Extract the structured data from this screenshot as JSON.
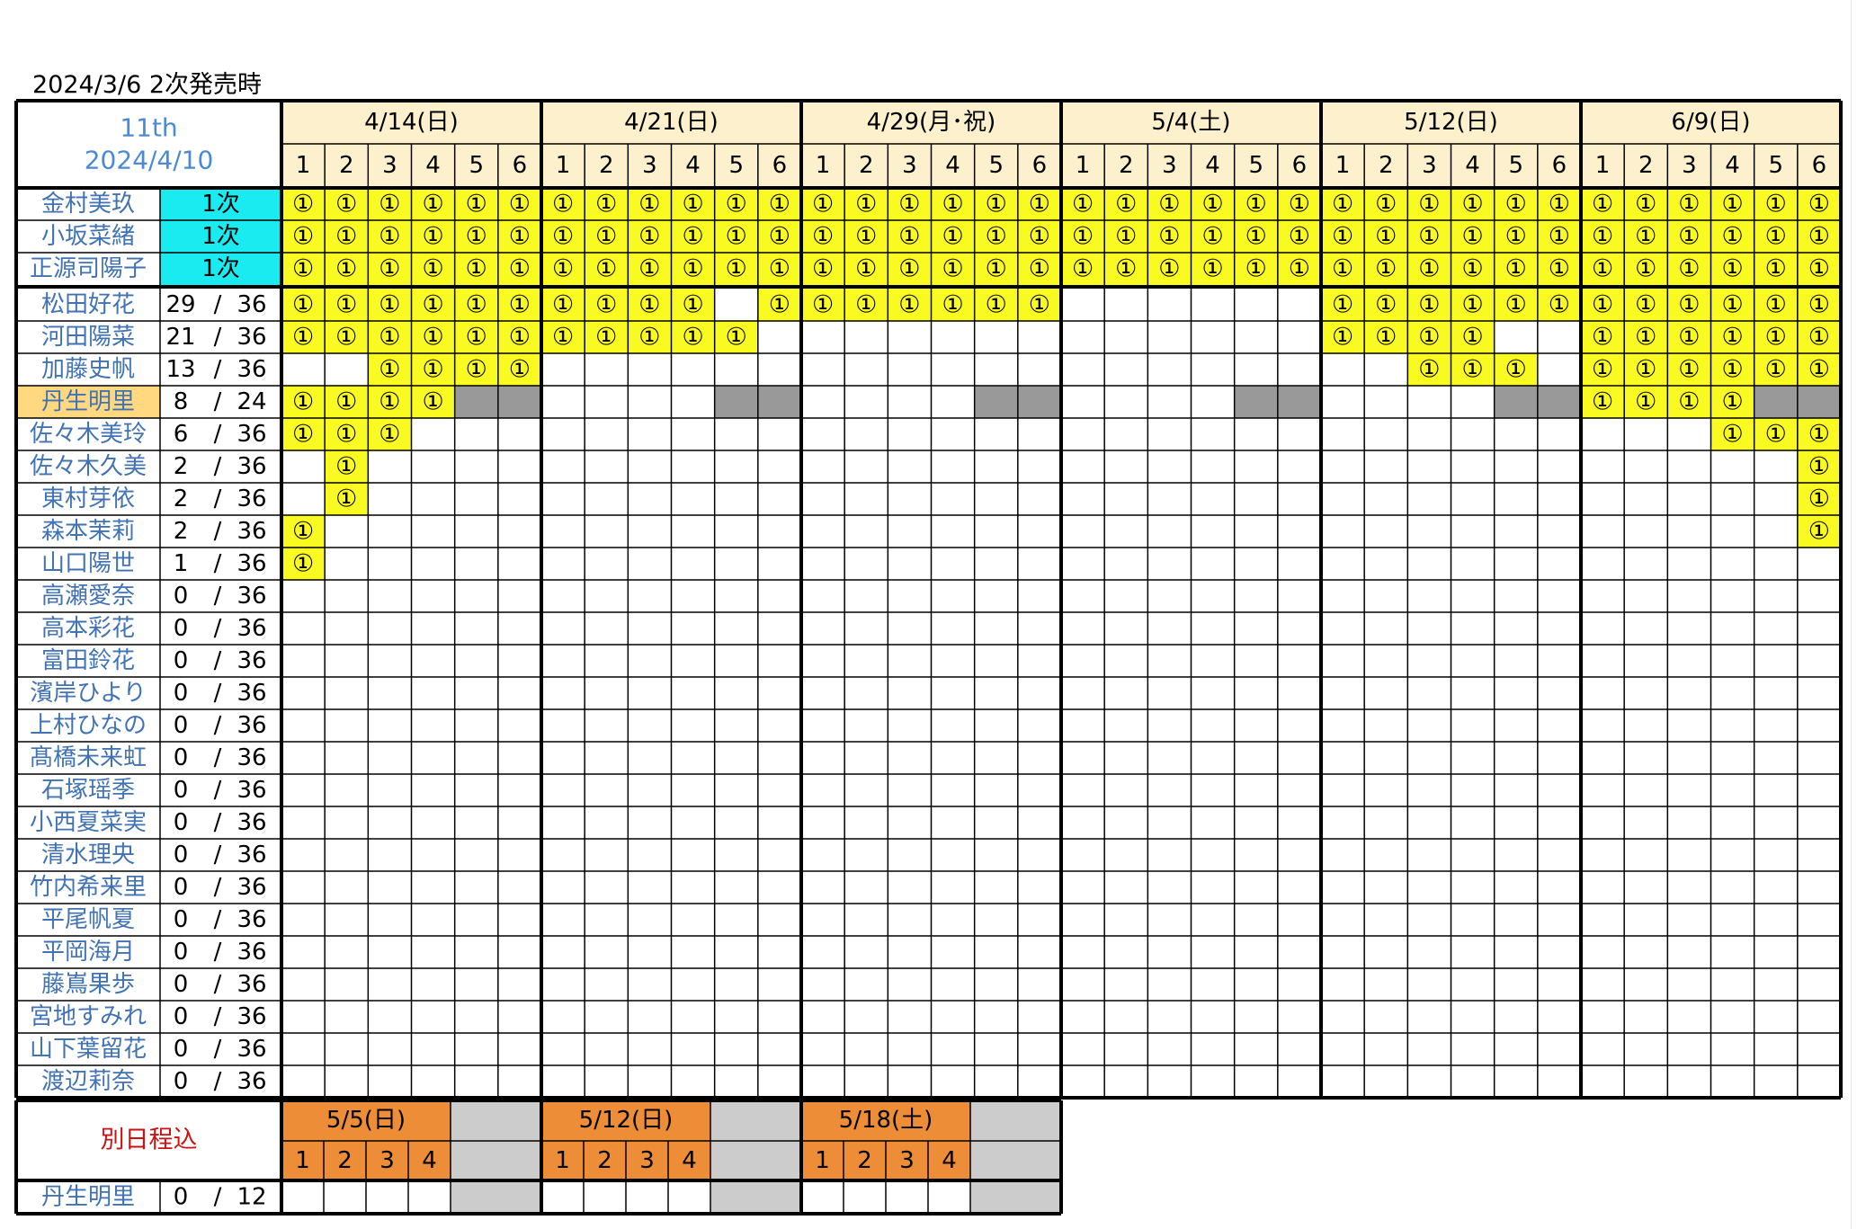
{
  "caption": "2024/3/6 2次発売時",
  "header": {
    "title_line1": "11th",
    "title_line2": "2024/4/10"
  },
  "mark": "①",
  "separator": "/",
  "dates": [
    "4/14(日)",
    "4/21(日)",
    "4/29(月･祝)",
    "5/4(土)",
    "5/12(日)",
    "6/9(日)"
  ],
  "parts": [
    "1",
    "2",
    "3",
    "4",
    "5",
    "6"
  ],
  "first_round": {
    "label": "1次",
    "members": [
      "金村美玖",
      "小坂菜緒",
      "正源司陽子"
    ]
  },
  "members": [
    {
      "name": "松田好花",
      "sold": "29",
      "total": "36",
      "marks": [
        "111111",
        "111101",
        "111111",
        "000000",
        "111111",
        "111111"
      ]
    },
    {
      "name": "河田陽菜",
      "sold": "21",
      "total": "36",
      "marks": [
        "111111",
        "111110",
        "000000",
        "000000",
        "111100",
        "111111"
      ]
    },
    {
      "name": "加藤史帆",
      "sold": "13",
      "total": "36",
      "marks": [
        "001111",
        "000000",
        "000000",
        "000000",
        "001110",
        "111111"
      ]
    },
    {
      "name": "丹生明里",
      "sold": "8",
      "total": "24",
      "highlight": true,
      "unavailable_parts": [
        "5",
        "6"
      ],
      "marks": [
        "111100",
        "000000",
        "000000",
        "000000",
        "000000",
        "111100"
      ]
    },
    {
      "name": "佐々木美玲",
      "sold": "6",
      "total": "36",
      "marks": [
        "111000",
        "000000",
        "000000",
        "000000",
        "000000",
        "000111"
      ]
    },
    {
      "name": "佐々木久美",
      "sold": "2",
      "total": "36",
      "marks": [
        "010000",
        "000000",
        "000000",
        "000000",
        "000000",
        "000001"
      ]
    },
    {
      "name": "東村芽依",
      "sold": "2",
      "total": "36",
      "marks": [
        "010000",
        "000000",
        "000000",
        "000000",
        "000000",
        "000001"
      ]
    },
    {
      "name": "森本茉莉",
      "sold": "2",
      "total": "36",
      "marks": [
        "100000",
        "000000",
        "000000",
        "000000",
        "000000",
        "000001"
      ]
    },
    {
      "name": "山口陽世",
      "sold": "1",
      "total": "36",
      "marks": [
        "100000",
        "000000",
        "000000",
        "000000",
        "000000",
        "000000"
      ]
    },
    {
      "name": "高瀬愛奈",
      "sold": "0",
      "total": "36"
    },
    {
      "name": "高本彩花",
      "sold": "0",
      "total": "36"
    },
    {
      "name": "富田鈴花",
      "sold": "0",
      "total": "36"
    },
    {
      "name": "濱岸ひより",
      "sold": "0",
      "total": "36"
    },
    {
      "name": "上村ひなの",
      "sold": "0",
      "total": "36"
    },
    {
      "name": "髙橋未来虹",
      "sold": "0",
      "total": "36"
    },
    {
      "name": "石塚瑶季",
      "sold": "0",
      "total": "36"
    },
    {
      "name": "小西夏菜実",
      "sold": "0",
      "total": "36"
    },
    {
      "name": "清水理央",
      "sold": "0",
      "total": "36"
    },
    {
      "name": "竹内希来里",
      "sold": "0",
      "total": "36"
    },
    {
      "name": "平尾帆夏",
      "sold": "0",
      "total": "36"
    },
    {
      "name": "平岡海月",
      "sold": "0",
      "total": "36"
    },
    {
      "name": "藤嶌果歩",
      "sold": "0",
      "total": "36"
    },
    {
      "name": "宮地すみれ",
      "sold": "0",
      "total": "36"
    },
    {
      "name": "山下葉留花",
      "sold": "0",
      "total": "36"
    },
    {
      "name": "渡辺莉奈",
      "sold": "0",
      "total": "36"
    }
  ],
  "separate_schedule": {
    "label": "別日程込",
    "dates": [
      "5/5(日)",
      "5/12(日)",
      "5/18(土)"
    ],
    "parts": [
      "1",
      "2",
      "3",
      "4"
    ],
    "member": {
      "name": "丹生明里",
      "sold": "0",
      "total": "12"
    }
  },
  "colors": {
    "header_fill": "#fdf0cc",
    "mark_fill": "#fafa23",
    "first_round_fill": "#19ebf0",
    "highlight_fill": "#ffd880",
    "unavailable_fill": "#999999",
    "orange_header": "#ed8d37",
    "separate_blank": "#cccccc",
    "name_text": "#4173b4",
    "title_text": "#4a8ad4",
    "separate_label_text": "#cc1111"
  }
}
